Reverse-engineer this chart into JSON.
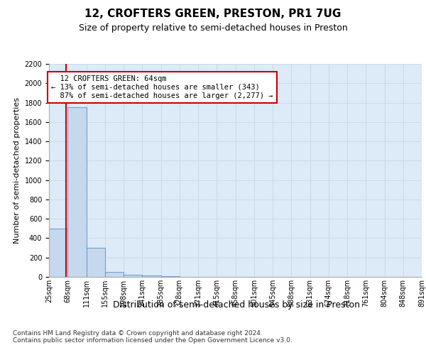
{
  "title1": "12, CROFTERS GREEN, PRESTON, PR1 7UG",
  "title2": "Size of property relative to semi-detached houses in Preston",
  "xlabel": "Distribution of semi-detached houses by size in Preston",
  "ylabel": "Number of semi-detached properties",
  "footnote": "Contains HM Land Registry data © Crown copyright and database right 2024.\nContains public sector information licensed under the Open Government Licence v3.0.",
  "bin_labels": [
    "25sqm",
    "68sqm",
    "111sqm",
    "155sqm",
    "198sqm",
    "241sqm",
    "285sqm",
    "328sqm",
    "371sqm",
    "415sqm",
    "458sqm",
    "501sqm",
    "545sqm",
    "588sqm",
    "631sqm",
    "674sqm",
    "718sqm",
    "761sqm",
    "804sqm",
    "848sqm",
    "891sqm"
  ],
  "bar_values": [
    500,
    1750,
    300,
    50,
    25,
    15,
    5,
    0,
    0,
    0,
    0,
    0,
    0,
    0,
    0,
    0,
    0,
    0,
    0,
    0
  ],
  "bar_color": "#c5d8ee",
  "bar_edge_color": "#5a8fc0",
  "ylim": [
    0,
    2200
  ],
  "yticks": [
    0,
    200,
    400,
    600,
    800,
    1000,
    1200,
    1400,
    1600,
    1800,
    2000,
    2200
  ],
  "property_label": "12 CROFTERS GREEN: 64sqm",
  "pct_smaller": 13,
  "n_smaller": 343,
  "pct_larger": 87,
  "n_larger": 2277,
  "annotation_box_color": "#ffffff",
  "annotation_box_edge": "#cc0000",
  "red_line_color": "#cc0000",
  "grid_color": "#c8daea",
  "bg_color": "#ddeaf7",
  "title1_fontsize": 11,
  "title2_fontsize": 9,
  "xlabel_fontsize": 9,
  "ylabel_fontsize": 8,
  "tick_fontsize": 7,
  "annot_fontsize": 7.5,
  "footnote_fontsize": 6.5
}
